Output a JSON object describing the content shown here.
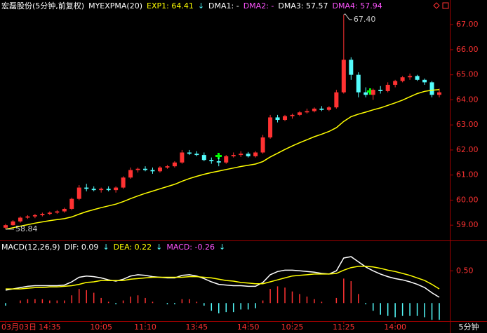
{
  "chart_data": [
    {
      "type": "candlestick",
      "header": [
        {
          "text": "宏磊股份(5分钟,前复权)",
          "color": "#ffffff"
        },
        {
          "text": "MYEXPMA(20)",
          "color": "#ffffff"
        },
        {
          "text": "EXP1: 64.41",
          "color": "#ffff00"
        },
        {
          "text": "↓",
          "color": "#54fcfc"
        },
        {
          "text": "DMA1: -",
          "color": "#ffffff"
        },
        {
          "text": "DMA2: -",
          "color": "#ff54ff"
        },
        {
          "text": "DMA3: 57.57",
          "color": "#ffffff"
        },
        {
          "text": "DMA4: 57.94",
          "color": "#ff54ff"
        }
      ],
      "categories": [
        "03月03日",
        null,
        null,
        null,
        null,
        null,
        "14:35",
        null,
        null,
        null,
        null,
        null,
        null,
        "10:05",
        null,
        null,
        null,
        null,
        null,
        "11:10",
        null,
        null,
        null,
        null,
        null,
        null,
        "13:45",
        null,
        null,
        null,
        null,
        null,
        null,
        "14:50",
        null,
        null,
        null,
        null,
        null,
        "10:25",
        null,
        null,
        null,
        null,
        null,
        null,
        "11:25",
        null,
        null,
        null,
        null,
        null,
        null,
        "14:00",
        null,
        null,
        null,
        null,
        null,
        null
      ],
      "period": "5分钟",
      "candles": [
        [
          58.9,
          59.05,
          58.84,
          59.0
        ],
        [
          59.0,
          59.2,
          58.98,
          59.15
        ],
        [
          59.15,
          59.35,
          59.1,
          59.3
        ],
        [
          59.3,
          59.4,
          59.25,
          59.35
        ],
        [
          59.35,
          59.45,
          59.28,
          59.4
        ],
        [
          59.4,
          59.5,
          59.35,
          59.45
        ],
        [
          59.45,
          59.55,
          59.4,
          59.5
        ],
        [
          59.5,
          59.6,
          59.45,
          59.55
        ],
        [
          59.55,
          59.7,
          59.5,
          59.65
        ],
        [
          59.65,
          60.1,
          59.6,
          60.05
        ],
        [
          60.05,
          60.6,
          60.0,
          60.5
        ],
        [
          60.5,
          60.65,
          60.35,
          60.45
        ],
        [
          60.45,
          60.55,
          60.35,
          60.4
        ],
        [
          60.4,
          60.5,
          60.3,
          60.45
        ],
        [
          60.45,
          60.55,
          60.35,
          60.4
        ],
        [
          60.4,
          60.55,
          60.3,
          60.5
        ],
        [
          60.5,
          60.95,
          60.45,
          60.9
        ],
        [
          60.9,
          61.3,
          60.85,
          61.2
        ],
        [
          61.2,
          61.3,
          61.1,
          61.25
        ],
        [
          61.25,
          61.35,
          61.15,
          61.2
        ],
        [
          61.2,
          61.3,
          61.05,
          61.15
        ],
        [
          61.15,
          61.35,
          61.1,
          61.3
        ],
        [
          61.3,
          61.4,
          61.25,
          61.35
        ],
        [
          61.35,
          61.55,
          61.3,
          61.5
        ],
        [
          61.5,
          62.0,
          61.45,
          61.9
        ],
        [
          61.9,
          62.0,
          61.8,
          61.85
        ],
        [
          61.85,
          61.95,
          61.75,
          61.8
        ],
        [
          61.8,
          61.9,
          61.55,
          61.6
        ],
        [
          61.6,
          61.7,
          61.45,
          61.55
        ],
        [
          61.55,
          61.7,
          61.35,
          61.5
        ],
        [
          61.5,
          61.8,
          61.45,
          61.75
        ],
        [
          61.75,
          61.9,
          61.7,
          61.8
        ],
        [
          61.8,
          61.95,
          61.72,
          61.85
        ],
        [
          61.85,
          61.92,
          61.7,
          61.75
        ],
        [
          61.75,
          61.95,
          61.7,
          61.9
        ],
        [
          61.9,
          62.6,
          61.85,
          62.5
        ],
        [
          62.5,
          63.4,
          62.45,
          63.3
        ],
        [
          63.3,
          63.4,
          63.1,
          63.2
        ],
        [
          63.2,
          63.4,
          63.15,
          63.35
        ],
        [
          63.35,
          63.45,
          63.25,
          63.4
        ],
        [
          63.4,
          63.55,
          63.35,
          63.5
        ],
        [
          63.5,
          63.65,
          63.45,
          63.55
        ],
        [
          63.55,
          63.7,
          63.5,
          63.65
        ],
        [
          63.65,
          63.75,
          63.55,
          63.6
        ],
        [
          63.6,
          63.75,
          63.55,
          63.7
        ],
        [
          63.7,
          64.4,
          63.65,
          64.3
        ],
        [
          64.3,
          67.4,
          64.25,
          65.6
        ],
        [
          65.6,
          65.7,
          64.8,
          65.0
        ],
        [
          65.0,
          65.1,
          64.1,
          64.3
        ],
        [
          64.3,
          64.5,
          64.1,
          64.2
        ],
        [
          64.2,
          64.45,
          64.0,
          64.4
        ],
        [
          64.4,
          64.55,
          64.25,
          64.35
        ],
        [
          64.35,
          64.7,
          64.3,
          64.6
        ],
        [
          64.6,
          64.8,
          64.5,
          64.75
        ],
        [
          64.75,
          64.95,
          64.7,
          64.9
        ],
        [
          64.9,
          65.05,
          64.8,
          64.95
        ],
        [
          64.95,
          65.0,
          64.75,
          64.8
        ],
        [
          64.8,
          64.85,
          64.6,
          64.7
        ],
        [
          64.7,
          64.75,
          64.1,
          64.2
        ],
        [
          64.2,
          64.45,
          64.1,
          64.3
        ]
      ],
      "up_color": "#ff3232",
      "down_color": "#54fcfc",
      "overlay": {
        "color": "#ffff00",
        "values": [
          58.84,
          58.9,
          58.96,
          59.02,
          59.08,
          59.13,
          59.18,
          59.22,
          59.26,
          59.33,
          59.44,
          59.54,
          59.62,
          59.7,
          59.77,
          59.84,
          59.94,
          60.06,
          60.17,
          60.27,
          60.36,
          60.45,
          60.54,
          60.63,
          60.75,
          60.86,
          60.95,
          61.03,
          61.1,
          61.16,
          61.22,
          61.28,
          61.34,
          61.39,
          61.44,
          61.54,
          61.72,
          61.87,
          62.02,
          62.16,
          62.29,
          62.41,
          62.53,
          62.63,
          62.74,
          62.89,
          63.14,
          63.33,
          63.43,
          63.51,
          63.6,
          63.68,
          63.78,
          63.88,
          63.99,
          64.12,
          64.25,
          64.34,
          64.38,
          64.41
        ]
      },
      "max_label": "67.40",
      "min_label": "58.84",
      "ylim": [
        58.39,
        67.48
      ],
      "yticks": [
        {
          "value": 59,
          "label": "59.00"
        },
        {
          "value": 60,
          "label": "60.00"
        },
        {
          "value": 61,
          "label": "61.00"
        },
        {
          "value": 62,
          "label": "62.00"
        },
        {
          "value": 63,
          "label": "63.00"
        },
        {
          "value": 64,
          "label": "64.00"
        },
        {
          "value": 65,
          "label": "65.00"
        },
        {
          "value": 66,
          "label": "66.00"
        },
        {
          "value": 67,
          "label": "67.00"
        }
      ]
    },
    {
      "type": "macd",
      "header": [
        {
          "text": "MACD(12,26,9)",
          "color": "#ffffff"
        },
        {
          "text": "DIF: 0.09",
          "color": "#ffffff"
        },
        {
          "text": "↓",
          "color": "#54fcfc"
        },
        {
          "text": "DEA: 0.22",
          "color": "#ffff00"
        },
        {
          "text": "↓",
          "color": "#54fcfc"
        },
        {
          "text": "MACD: -0.26",
          "color": "#ff54ff"
        },
        {
          "text": "↓",
          "color": "#54fcfc"
        }
      ],
      "dif": {
        "color": "#ffffff",
        "values": [
          0.2,
          0.22,
          0.24,
          0.26,
          0.27,
          0.27,
          0.27,
          0.27,
          0.28,
          0.33,
          0.4,
          0.42,
          0.41,
          0.39,
          0.36,
          0.34,
          0.37,
          0.42,
          0.44,
          0.43,
          0.41,
          0.4,
          0.39,
          0.39,
          0.43,
          0.44,
          0.42,
          0.38,
          0.33,
          0.29,
          0.28,
          0.27,
          0.27,
          0.26,
          0.26,
          0.32,
          0.44,
          0.49,
          0.51,
          0.51,
          0.5,
          0.49,
          0.48,
          0.46,
          0.45,
          0.5,
          0.7,
          0.72,
          0.64,
          0.56,
          0.5,
          0.45,
          0.41,
          0.38,
          0.36,
          0.33,
          0.29,
          0.24,
          0.16,
          0.09
        ]
      },
      "dea": {
        "color": "#ffff00",
        "values": [
          0.22,
          0.22,
          0.22,
          0.23,
          0.24,
          0.24,
          0.25,
          0.25,
          0.26,
          0.27,
          0.29,
          0.32,
          0.33,
          0.35,
          0.35,
          0.35,
          0.35,
          0.37,
          0.38,
          0.39,
          0.4,
          0.4,
          0.4,
          0.4,
          0.4,
          0.41,
          0.41,
          0.4,
          0.39,
          0.37,
          0.35,
          0.34,
          0.32,
          0.31,
          0.3,
          0.3,
          0.33,
          0.36,
          0.39,
          0.42,
          0.43,
          0.44,
          0.45,
          0.45,
          0.45,
          0.46,
          0.51,
          0.55,
          0.57,
          0.57,
          0.56,
          0.54,
          0.51,
          0.49,
          0.46,
          0.43,
          0.39,
          0.35,
          0.29,
          0.22
        ]
      },
      "macd": {
        "up_color": "#ff3232",
        "down_color": "#54fcfc",
        "values": [
          -0.04,
          0,
          0.04,
          0.06,
          0.06,
          0.06,
          0.04,
          0.04,
          0.04,
          0.12,
          0.22,
          0.2,
          0.16,
          0.08,
          0.02,
          -0.02,
          0.04,
          0.1,
          0.12,
          0.08,
          0.02,
          0,
          -0.02,
          -0.02,
          0.06,
          0.06,
          0.02,
          -0.04,
          -0.12,
          -0.16,
          -0.14,
          -0.14,
          -0.1,
          -0.1,
          -0.08,
          0.04,
          0.22,
          0.26,
          0.24,
          0.18,
          0.14,
          0.1,
          0.06,
          0.02,
          0,
          0.08,
          0.38,
          0.34,
          0.14,
          -0.02,
          -0.12,
          -0.18,
          -0.2,
          -0.22,
          -0.2,
          -0.2,
          -0.2,
          -0.22,
          -0.26,
          -0.26
        ]
      },
      "ylim": [
        -0.28,
        0.95
      ],
      "yticks": [
        {
          "value": 0.5,
          "label": "0.50"
        }
      ]
    }
  ]
}
